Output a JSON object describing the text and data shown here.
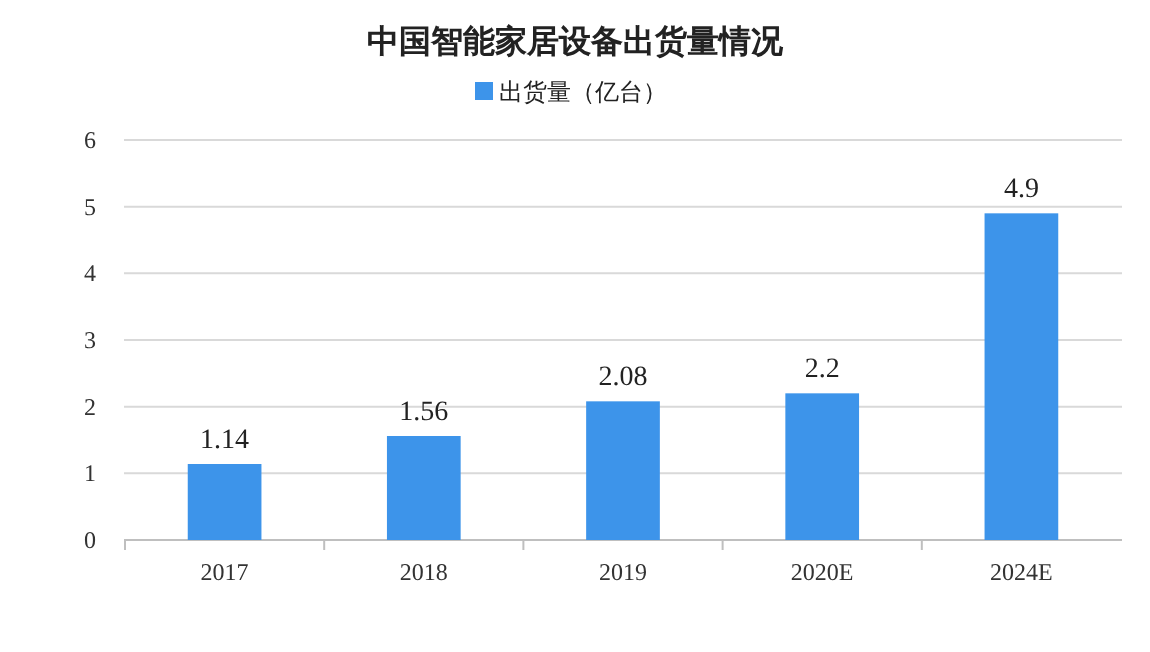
{
  "chart_data": {
    "type": "bar",
    "title": "中国智能家居设备出货量情况",
    "categories": [
      "2017",
      "2018",
      "2019",
      "2020E",
      "2024E"
    ],
    "series": [
      {
        "name": "出货量（亿台）",
        "color": "#3d94ea",
        "values": [
          1.14,
          1.56,
          2.08,
          2.2,
          4.9
        ]
      }
    ],
    "ylim": [
      0,
      6
    ],
    "yticks": [
      0,
      1,
      2,
      3,
      4,
      5,
      6
    ],
    "grid": "y",
    "legend": "top",
    "data_labels": true
  }
}
